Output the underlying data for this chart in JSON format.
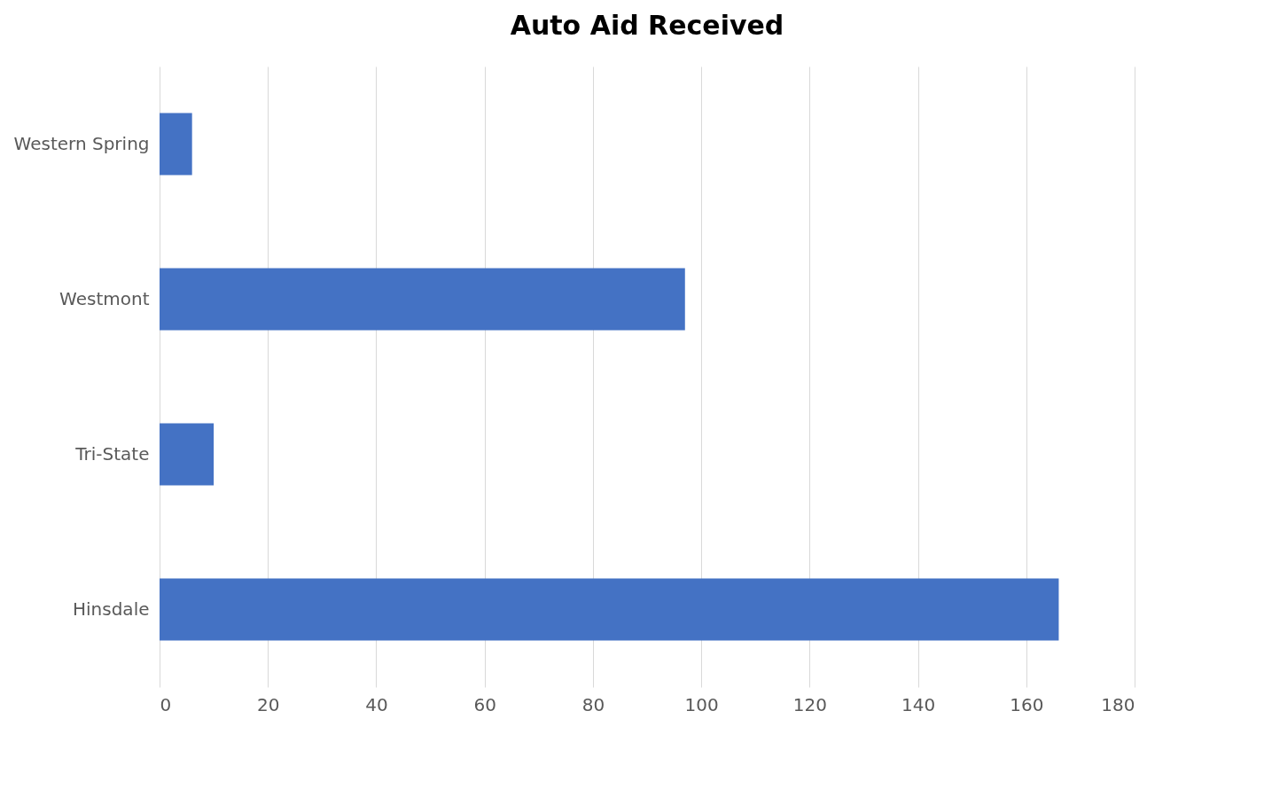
{
  "chart_data": {
    "type": "bar",
    "orientation": "horizontal",
    "title": "Auto Aid Received",
    "categories": [
      "Western Spring",
      "Westmont",
      "Tri-State",
      "Hinsdale"
    ],
    "values": [
      6,
      97,
      10,
      166
    ],
    "color": "#4472c4",
    "xlim": [
      0,
      180
    ],
    "xticks": [
      0,
      20,
      40,
      60,
      80,
      100,
      120,
      140,
      160,
      180
    ],
    "grid": "x"
  }
}
